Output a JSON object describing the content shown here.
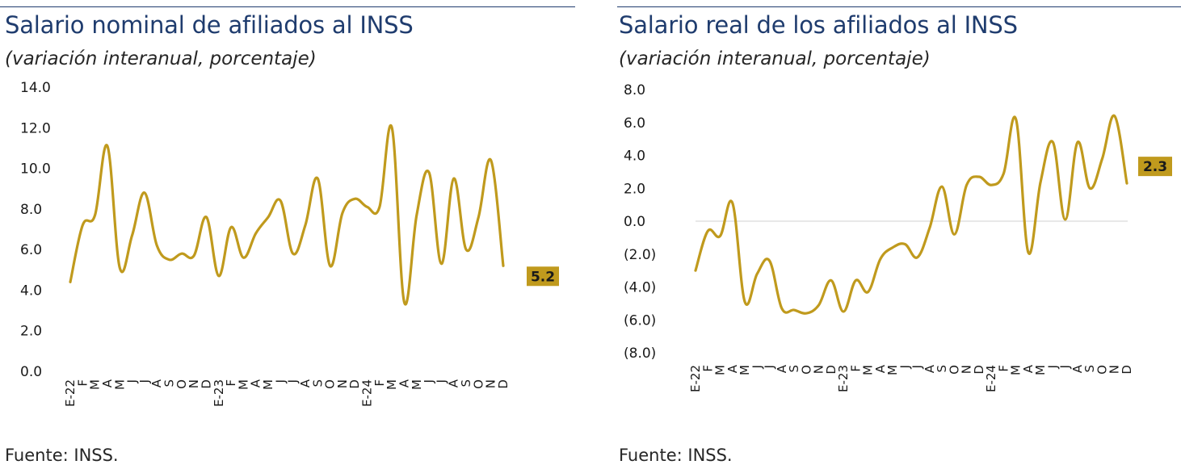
{
  "colors": {
    "title": "#1f3c6e",
    "line": "#c09a1d",
    "end_label_bg": "#c09a1d",
    "zero_line": "#d9d9d9"
  },
  "left": {
    "title": "Salario nominal de afiliados al INSS",
    "subtitle": "(variación interanual, porcentaje)",
    "source": "Fuente: INSS.",
    "end_label": "5.2"
  },
  "right": {
    "title": "Salario real de los afiliados al INSS",
    "subtitle": "(variación interanual, porcentaje)",
    "source": "Fuente: INSS.",
    "end_label": "2.3"
  },
  "chart_data": [
    {
      "type": "line",
      "x": [
        "E-22",
        "F",
        "M",
        "A",
        "M",
        "J",
        "J",
        "A",
        "S",
        "O",
        "N",
        "D",
        "E-23",
        "F",
        "M",
        "A",
        "M",
        "J",
        "J",
        "A",
        "S",
        "O",
        "N",
        "D",
        "E-24",
        "F",
        "M",
        "A",
        "M",
        "J",
        "J",
        "A",
        "S",
        "O",
        "N",
        "D"
      ],
      "ylim": [
        0,
        14
      ],
      "yticks": [
        0,
        2,
        4,
        6,
        8,
        10,
        12,
        14
      ],
      "ytick_labels": [
        "0.0",
        "2.0",
        "4.0",
        "6.0",
        "8.0",
        "10.0",
        "12.0",
        "14.0"
      ],
      "grid": false,
      "series": [
        {
          "values": [
            4.4,
            7.2,
            7.7,
            11.1,
            5.1,
            6.7,
            8.8,
            6.2,
            5.5,
            5.8,
            5.7,
            7.6,
            4.7,
            7.1,
            5.6,
            6.8,
            7.6,
            8.4,
            5.8,
            7.2,
            9.5,
            5.2,
            7.8,
            8.5,
            8.1,
            8.1,
            12.0,
            3.4,
            7.7,
            9.8,
            5.3,
            9.5,
            6.0,
            7.6,
            10.4,
            5.2
          ]
        }
      ],
      "end_value_label": "5.2"
    },
    {
      "type": "line",
      "x": [
        "E-22",
        "F",
        "M",
        "A",
        "M",
        "J",
        "J",
        "A",
        "S",
        "O",
        "N",
        "D",
        "E-23",
        "F",
        "M",
        "A",
        "M",
        "J",
        "J",
        "A",
        "S",
        "O",
        "N",
        "D",
        "E-24",
        "F",
        "M",
        "A",
        "M",
        "J",
        "J",
        "A",
        "S",
        "O",
        "N",
        "D"
      ],
      "ylim": [
        -8,
        8
      ],
      "yticks": [
        -8,
        -6,
        -4,
        -2,
        0,
        2,
        4,
        6,
        8
      ],
      "ytick_labels": [
        "(8.0)",
        "(6.0)",
        "(4.0)",
        "(2.0)",
        "0.0",
        "2.0",
        "4.0",
        "6.0",
        "8.0"
      ],
      "grid": false,
      "zero_line": true,
      "series": [
        {
          "values": [
            -3.0,
            -0.6,
            -0.9,
            1.1,
            -4.9,
            -3.2,
            -2.4,
            -5.3,
            -5.4,
            -5.6,
            -5.1,
            -3.6,
            -5.5,
            -3.6,
            -4.3,
            -2.3,
            -1.6,
            -1.4,
            -2.2,
            -0.4,
            2.1,
            -0.8,
            2.2,
            2.7,
            2.2,
            2.9,
            6.2,
            -1.9,
            2.4,
            4.8,
            0.1,
            4.8,
            2.0,
            3.8,
            6.4,
            2.3
          ]
        }
      ],
      "end_value_label": "2.3"
    }
  ]
}
